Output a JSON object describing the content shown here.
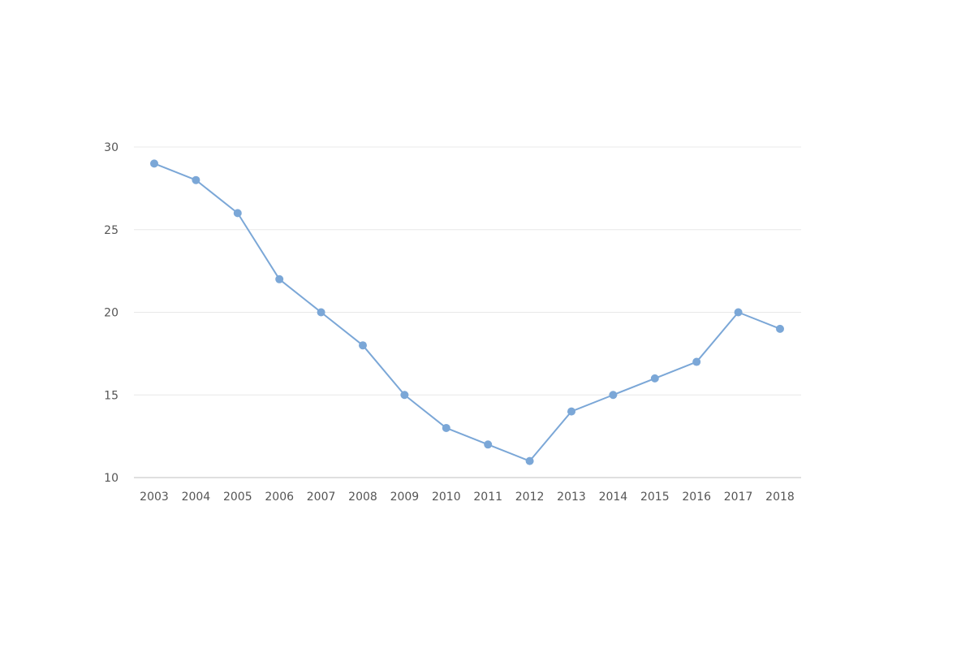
{
  "chart_data": {
    "type": "line",
    "title": "",
    "xlabel": "",
    "ylabel": "",
    "x": [
      "2003",
      "2004",
      "2005",
      "2006",
      "2007",
      "2008",
      "2009",
      "2010",
      "2011",
      "2012",
      "2013",
      "2014",
      "2015",
      "2016",
      "2017",
      "2018"
    ],
    "series": [
      {
        "values": [
          29,
          28,
          26,
          22,
          20,
          18,
          15,
          13,
          12,
          11,
          14,
          15,
          16,
          17,
          20,
          19
        ],
        "color": "#7ba7d7"
      }
    ],
    "ylim": [
      10,
      30
    ],
    "yticks": [
      "10",
      "15",
      "20",
      "25",
      "30"
    ],
    "grid": true,
    "legend": "none"
  }
}
